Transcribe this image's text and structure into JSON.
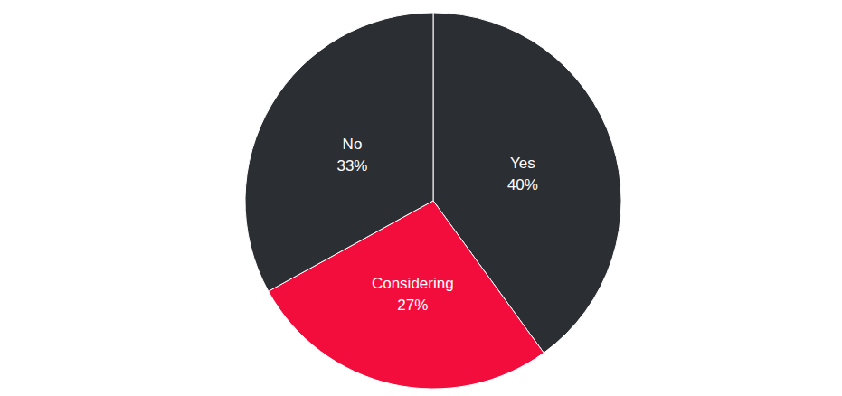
{
  "chart_data": {
    "type": "pie",
    "categories": [
      "Yes",
      "Considering",
      "No"
    ],
    "values": [
      40,
      27,
      33
    ],
    "value_labels": [
      "40%",
      "27%",
      "33%"
    ],
    "colors": [
      "#2b2f33",
      "#f20d3c",
      "#2b2f33"
    ],
    "data_labels": true
  }
}
